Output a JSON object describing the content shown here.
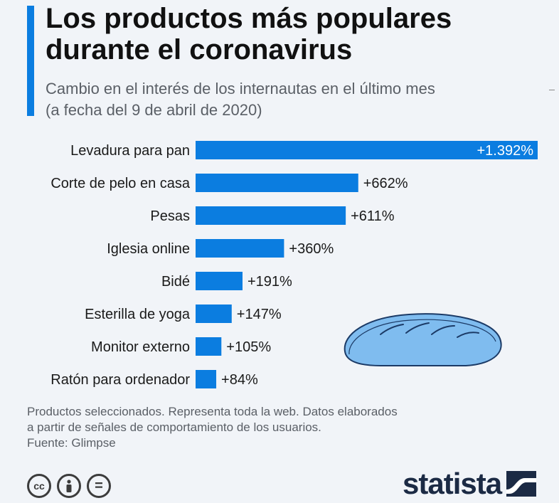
{
  "header": {
    "title_line1": "Los productos más populares",
    "title_line2": "durante el coronavirus",
    "subtitle_line1": "Cambio en el interés de los internautas en el último mes",
    "subtitle_line2": "(a fecha del 9 de abril de 2020)"
  },
  "chart_data": {
    "type": "bar",
    "orientation": "horizontal",
    "categories": [
      "Levadura para pan",
      "Corte de pelo en casa",
      "Pesas",
      "Iglesia online",
      "Bidé",
      "Esterilla de yoga",
      "Monitor externo",
      "Ratón para ordenador"
    ],
    "values": [
      1392,
      662,
      611,
      360,
      191,
      147,
      105,
      84
    ],
    "value_labels": [
      "+1.392%",
      "+662%",
      "+611%",
      "+360%",
      "+191%",
      "+147%",
      "+105%",
      "+84%"
    ],
    "bar_color": "#0b7de0",
    "xlim": [
      0,
      1392
    ],
    "grid": false,
    "axis_labels_shown": false
  },
  "footer": {
    "note_line1": "Productos seleccionados. Representa toda la web. Datos elaborados",
    "note_line2": "a partir de señales de comportamiento de los usuarios.",
    "source": "Fuente: Glimpse",
    "license_icons": [
      "cc-icon",
      "attribution-icon",
      "no-derivatives-icon"
    ],
    "license_glyphs": [
      "cc",
      "",
      "="
    ],
    "brand": "statista"
  },
  "decoration": {
    "icon": "bread-icon",
    "fill": "#7fbcef",
    "stroke": "#1b3a66"
  }
}
